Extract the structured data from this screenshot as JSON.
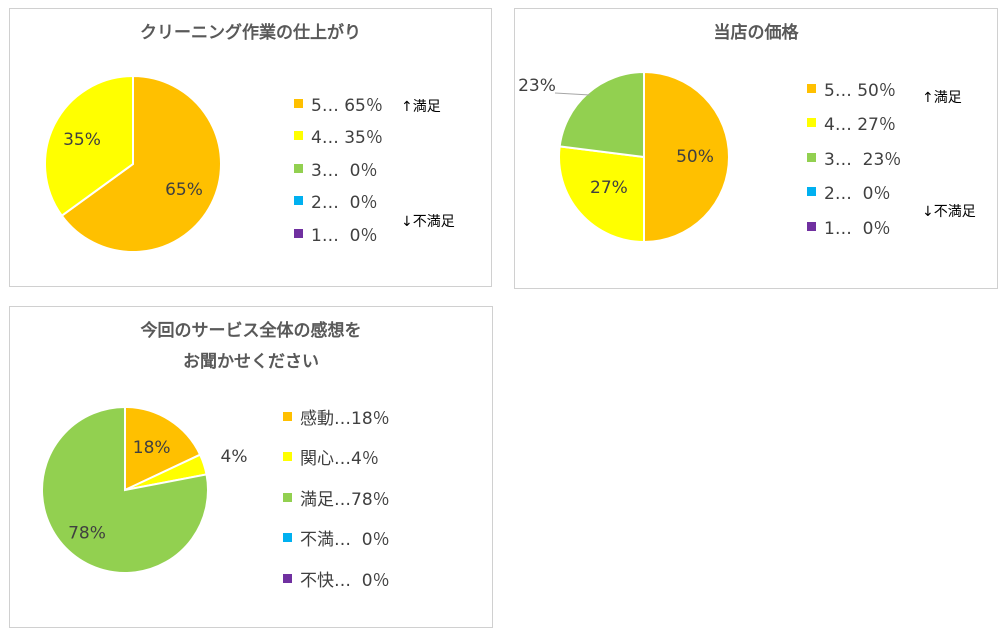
{
  "charts": [
    {
      "title_lines": [
        "クリーニング作業の仕上がり"
      ],
      "legend": [
        {
          "label": "5… 65％",
          "color": "#FFC000"
        },
        {
          "label": "4… 35％",
          "color": "#FFFF00"
        },
        {
          "label": "3…  0％",
          "color": "#92D050"
        },
        {
          "label": "2…  0％",
          "color": "#00B0F0"
        },
        {
          "label": "1…  0％",
          "color": "#7030A0"
        }
      ],
      "hint_top": "↑満足",
      "hint_bottom": "↓不満足"
    },
    {
      "title_lines": [
        "当店の価格"
      ],
      "legend": [
        {
          "label": "5… 50％",
          "color": "#FFC000"
        },
        {
          "label": "4… 27％",
          "color": "#FFFF00"
        },
        {
          "label": "3…  23％",
          "color": "#92D050"
        },
        {
          "label": "2…  0％",
          "color": "#00B0F0"
        },
        {
          "label": "1…  0％",
          "color": "#7030A0"
        }
      ],
      "hint_top": "↑満足",
      "hint_bottom": "↓不満足"
    },
    {
      "title_lines": [
        "今回のサービス全体の感想を",
        "お聞かせください"
      ],
      "legend": [
        {
          "label": "感動…18％",
          "color": "#FFC000"
        },
        {
          "label": "関心…4％",
          "color": "#FFFF00"
        },
        {
          "label": "満足…78％",
          "color": "#92D050"
        },
        {
          "label": "不満…  0％",
          "color": "#00B0F0"
        },
        {
          "label": "不快…  0％",
          "color": "#7030A0"
        }
      ]
    }
  ],
  "chart_data": [
    {
      "type": "pie",
      "title": "クリーニング作業の仕上がり",
      "categories": [
        "5",
        "4",
        "3",
        "2",
        "1"
      ],
      "values": [
        65,
        35,
        0,
        0,
        0
      ],
      "data_labels": [
        "65%",
        "35%",
        "",
        "",
        ""
      ],
      "colors": [
        "#FFC000",
        "#FFFF00",
        "#92D050",
        "#00B0F0",
        "#7030A0"
      ],
      "legend_position": "right"
    },
    {
      "type": "pie",
      "title": "当店の価格",
      "categories": [
        "5",
        "4",
        "3",
        "2",
        "1"
      ],
      "values": [
        50,
        27,
        23,
        0,
        0
      ],
      "data_labels": [
        "50%",
        "27%",
        "23%",
        "",
        ""
      ],
      "colors": [
        "#FFC000",
        "#FFFF00",
        "#92D050",
        "#00B0F0",
        "#7030A0"
      ],
      "legend_position": "right"
    },
    {
      "type": "pie",
      "title": "今回のサービス全体の感想をお聞かせください",
      "categories": [
        "感動",
        "関心",
        "満足",
        "不満",
        "不快"
      ],
      "values": [
        18,
        4,
        78,
        0,
        0
      ],
      "data_labels": [
        "18%",
        "4%",
        "78%",
        "",
        ""
      ],
      "colors": [
        "#FFC000",
        "#FFFF00",
        "#92D050",
        "#00B0F0",
        "#7030A0"
      ],
      "legend_position": "right"
    }
  ]
}
